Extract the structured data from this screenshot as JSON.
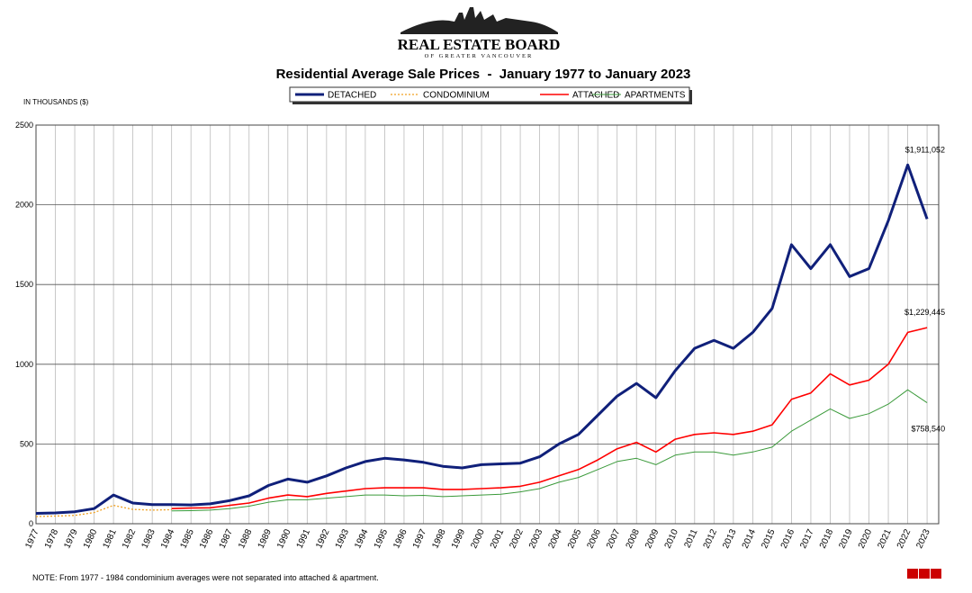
{
  "logo": {
    "title": "REAL ESTATE BOARD",
    "subtitle": "OF GREATER VANCOUVER"
  },
  "chart_data": {
    "type": "line",
    "title": "Residential Average Sale Prices  -  January 1977 to January 2023",
    "y_label": "IN THOUSANDS ($)",
    "x": [
      1977,
      1978,
      1979,
      1980,
      1981,
      1982,
      1983,
      1984,
      1985,
      1986,
      1987,
      1988,
      1989,
      1990,
      1991,
      1992,
      1993,
      1994,
      1995,
      1996,
      1997,
      1998,
      1999,
      2000,
      2001,
      2002,
      2003,
      2004,
      2005,
      2006,
      2007,
      2008,
      2009,
      2010,
      2011,
      2012,
      2013,
      2014,
      2015,
      2016,
      2017,
      2018,
      2019,
      2020,
      2021,
      2022,
      2023
    ],
    "series": [
      {
        "name": "DETACHED",
        "color": "#10207a",
        "style": "thick",
        "end_label": "$1,911,052",
        "values": [
          65,
          68,
          75,
          95,
          180,
          130,
          120,
          120,
          118,
          125,
          145,
          175,
          240,
          280,
          260,
          300,
          350,
          390,
          410,
          400,
          385,
          360,
          350,
          370,
          375,
          380,
          420,
          500,
          560,
          680,
          800,
          880,
          790,
          960,
          1100,
          1150,
          1100,
          1200,
          1350,
          1750,
          1600,
          1750,
          1550,
          1600,
          1900,
          2250,
          1911.052
        ]
      },
      {
        "name": "CONDOMINIUM",
        "color": "#f0a020",
        "style": "dotted",
        "values": [
          45,
          48,
          52,
          70,
          115,
          90,
          85,
          88,
          null,
          null,
          null,
          null,
          null,
          null,
          null,
          null,
          null,
          null,
          null,
          null,
          null,
          null,
          null,
          null,
          null,
          null,
          null,
          null,
          null,
          null,
          null,
          null,
          null,
          null,
          null,
          null,
          null,
          null,
          null,
          null,
          null,
          null,
          null,
          null,
          null,
          null,
          null
        ]
      },
      {
        "name": "ATTACHED",
        "color": "#ff0000",
        "style": "solid",
        "end_label": "$1,229,445",
        "values": [
          null,
          null,
          null,
          null,
          null,
          null,
          null,
          95,
          98,
          100,
          115,
          130,
          160,
          180,
          170,
          190,
          205,
          220,
          225,
          225,
          225,
          215,
          215,
          220,
          225,
          235,
          260,
          300,
          340,
          400,
          470,
          510,
          450,
          530,
          560,
          570,
          560,
          580,
          620,
          780,
          820,
          940,
          870,
          900,
          1000,
          1200,
          1229.445
        ]
      },
      {
        "name": "APARTMENTS",
        "color": "#3a9a3a",
        "style": "thin",
        "end_label": "$758,540",
        "values": [
          null,
          null,
          null,
          null,
          null,
          null,
          null,
          80,
          82,
          85,
          95,
          110,
          135,
          150,
          150,
          160,
          170,
          180,
          180,
          175,
          178,
          170,
          175,
          180,
          185,
          200,
          220,
          260,
          290,
          340,
          390,
          410,
          370,
          430,
          450,
          450,
          430,
          450,
          480,
          580,
          650,
          720,
          660,
          690,
          750,
          840,
          758.54
        ]
      }
    ],
    "xlim": [
      1977,
      2023.6
    ],
    "xticks": [
      1977,
      1978,
      1979,
      1980,
      1981,
      1982,
      1983,
      1984,
      1985,
      1986,
      1987,
      1988,
      1989,
      1990,
      1991,
      1992,
      1993,
      1994,
      1995,
      1996,
      1997,
      1998,
      1999,
      2000,
      2001,
      2002,
      2003,
      2004,
      2005,
      2006,
      2007,
      2008,
      2009,
      2010,
      2011,
      2012,
      2013,
      2014,
      2015,
      2016,
      2017,
      2018,
      2019,
      2020,
      2021,
      2022,
      2023
    ],
    "ylim": [
      0,
      2500
    ],
    "yticks": [
      0,
      500,
      1000,
      1500,
      2000,
      2500
    ],
    "grid": true,
    "legend": "top",
    "note": "NOTE:  From 1977 - 1984 condominium averages were not separated into attached & apartment."
  }
}
